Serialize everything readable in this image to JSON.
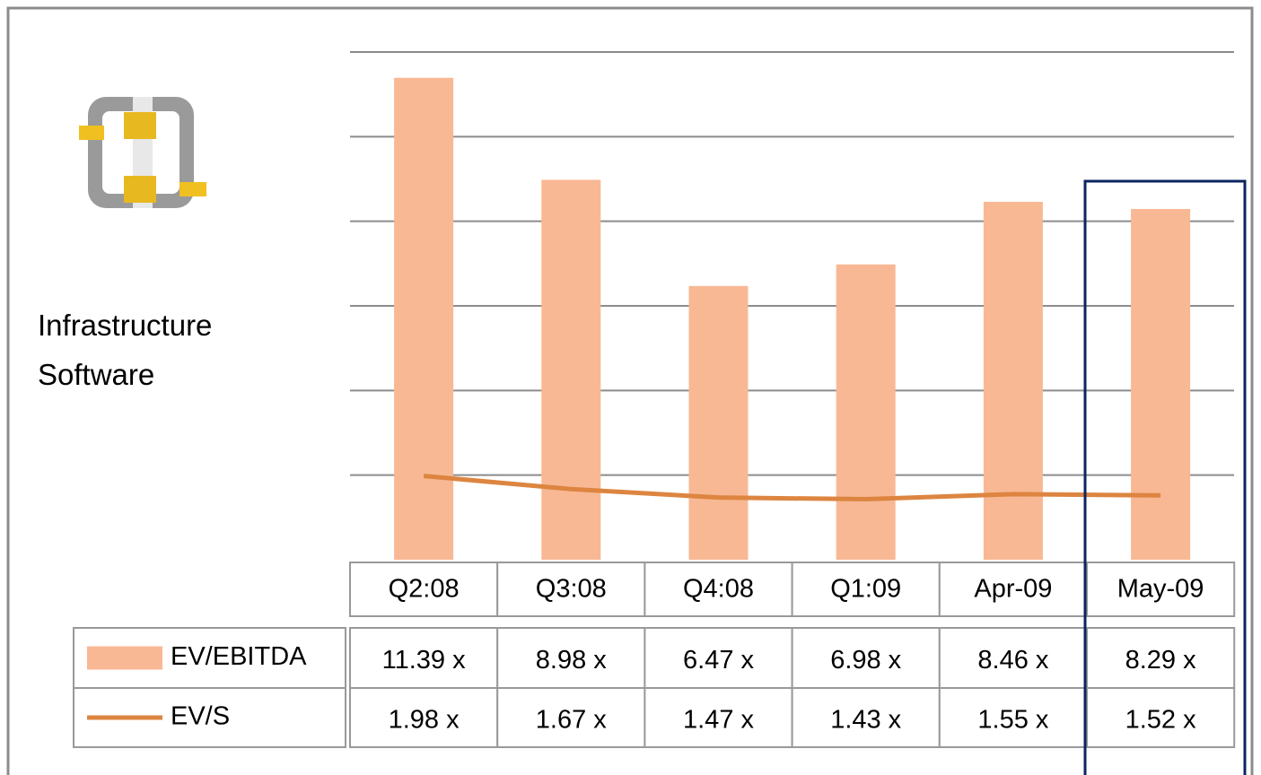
{
  "chart_data": {
    "type": "bar_line_table",
    "label": "Infrastructure Software",
    "categories": [
      "Q2:08",
      "Q3:08",
      "Q4:08",
      "Q1:09",
      "Apr-09",
      "May-09"
    ],
    "series": [
      {
        "name": "EV/EBITDA",
        "type": "bar",
        "color": "#f8b894",
        "values": [
          11.39,
          8.98,
          6.47,
          6.98,
          8.46,
          8.29
        ],
        "value_labels": [
          "11.39 x",
          "8.98 x",
          "6.47 x",
          "6.98 x",
          "8.46 x",
          "8.29 x"
        ]
      },
      {
        "name": "EV/S",
        "type": "line",
        "color": "#dd8540",
        "values": [
          1.98,
          1.67,
          1.47,
          1.43,
          1.55,
          1.52
        ],
        "value_labels": [
          "1.98 x",
          "1.67 x",
          "1.47 x",
          "1.43 x",
          "1.55 x",
          "1.52 x"
        ]
      }
    ],
    "ylim": [
      0,
      12
    ],
    "yticks": [
      2,
      4,
      6,
      8,
      10,
      12
    ],
    "grid": true,
    "highlight_color": "#0b2560"
  }
}
